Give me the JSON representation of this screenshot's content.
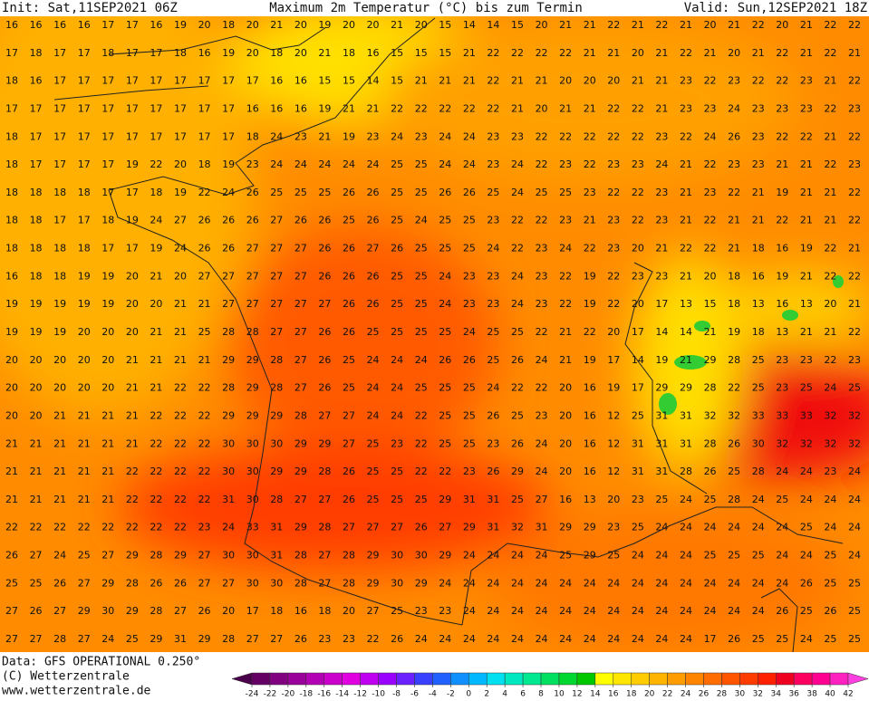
{
  "header": {
    "init": "Init: Sat,11SEP2021 06Z",
    "title": "Maximum 2m Temperatur (°C) bis zum Termin",
    "valid": "Valid: Sun,12SEP2021 18Z"
  },
  "footer": {
    "source": "Data: GFS OPERATIONAL 0.250°",
    "copyright": "(C) Wetterzentrale",
    "website": "www.wetterzentrale.de"
  },
  "grid": {
    "rows": [
      [
        16,
        16,
        16,
        16,
        17,
        17,
        16,
        19,
        20,
        18,
        20,
        21,
        20,
        19,
        20,
        20,
        21,
        20,
        15,
        14,
        14,
        15,
        20,
        21,
        21,
        22,
        21,
        22,
        21,
        20,
        21,
        22,
        20,
        21,
        22,
        22
      ],
      [
        17,
        18,
        17,
        17,
        18,
        17,
        17,
        18,
        16,
        19,
        20,
        18,
        20,
        21,
        18,
        16,
        15,
        15,
        15,
        21,
        22,
        22,
        22,
        22,
        21,
        21,
        20,
        21,
        22,
        21,
        20,
        21,
        22,
        21,
        22,
        21
      ],
      [
        18,
        16,
        17,
        17,
        17,
        17,
        17,
        17,
        17,
        17,
        17,
        16,
        16,
        15,
        15,
        14,
        15,
        21,
        21,
        21,
        22,
        21,
        21,
        20,
        20,
        20,
        21,
        21,
        23,
        22,
        23,
        22,
        22,
        23,
        21,
        22
      ],
      [
        17,
        17,
        17,
        17,
        17,
        17,
        17,
        17,
        17,
        17,
        16,
        16,
        16,
        19,
        21,
        21,
        22,
        22,
        22,
        22,
        22,
        21,
        20,
        21,
        21,
        22,
        22,
        21,
        23,
        23,
        24,
        23,
        23,
        23,
        22,
        23
      ],
      [
        18,
        17,
        17,
        17,
        17,
        17,
        17,
        17,
        17,
        17,
        18,
        24,
        23,
        21,
        19,
        23,
        24,
        23,
        24,
        24,
        23,
        23,
        22,
        22,
        22,
        22,
        22,
        23,
        22,
        24,
        26,
        23,
        22,
        22,
        21,
        22
      ],
      [
        18,
        17,
        17,
        17,
        17,
        19,
        22,
        20,
        18,
        19,
        23,
        24,
        24,
        24,
        24,
        24,
        25,
        25,
        24,
        24,
        23,
        24,
        22,
        23,
        22,
        23,
        23,
        24,
        21,
        22,
        23,
        23,
        21,
        21,
        22,
        23
      ],
      [
        18,
        18,
        18,
        18,
        17,
        17,
        18,
        19,
        22,
        24,
        26,
        25,
        25,
        25,
        26,
        26,
        25,
        25,
        26,
        26,
        25,
        24,
        25,
        25,
        23,
        22,
        22,
        23,
        21,
        23,
        22,
        21,
        19,
        21,
        21,
        22
      ],
      [
        18,
        18,
        17,
        17,
        18,
        19,
        24,
        27,
        26,
        26,
        26,
        27,
        26,
        26,
        25,
        26,
        25,
        24,
        25,
        25,
        23,
        22,
        22,
        23,
        21,
        23,
        22,
        23,
        21,
        22,
        21,
        21,
        22,
        21,
        21,
        22
      ],
      [
        18,
        18,
        18,
        18,
        17,
        17,
        19,
        24,
        26,
        26,
        27,
        27,
        27,
        26,
        26,
        27,
        26,
        25,
        25,
        25,
        24,
        22,
        23,
        24,
        22,
        23,
        20,
        21,
        22,
        22,
        21,
        18,
        16,
        19,
        22,
        21
      ],
      [
        16,
        18,
        18,
        19,
        19,
        20,
        21,
        20,
        27,
        27,
        27,
        27,
        27,
        26,
        26,
        26,
        25,
        25,
        24,
        23,
        23,
        24,
        23,
        22,
        19,
        22,
        23,
        23,
        21,
        20,
        18,
        16,
        19,
        21,
        22,
        22
      ],
      [
        19,
        19,
        19,
        19,
        19,
        20,
        20,
        21,
        21,
        27,
        27,
        27,
        27,
        27,
        26,
        26,
        25,
        25,
        24,
        23,
        23,
        24,
        23,
        22,
        19,
        22,
        20,
        17,
        13,
        15,
        18,
        13,
        16,
        13,
        20,
        21
      ],
      [
        19,
        19,
        19,
        20,
        20,
        20,
        21,
        21,
        25,
        28,
        28,
        27,
        27,
        26,
        26,
        25,
        25,
        25,
        25,
        24,
        25,
        25,
        22,
        21,
        22,
        20,
        17,
        14,
        14,
        21,
        19,
        18,
        13,
        21,
        21,
        22
      ],
      [
        20,
        20,
        20,
        20,
        20,
        21,
        21,
        21,
        21,
        29,
        29,
        28,
        27,
        26,
        25,
        24,
        24,
        24,
        26,
        26,
        25,
        26,
        24,
        21,
        19,
        17,
        14,
        19,
        21,
        29,
        28,
        25,
        23,
        23,
        22,
        23
      ],
      [
        20,
        20,
        20,
        20,
        20,
        21,
        21,
        22,
        22,
        28,
        29,
        28,
        27,
        26,
        25,
        24,
        24,
        25,
        25,
        25,
        24,
        22,
        22,
        20,
        16,
        19,
        17,
        29,
        29,
        28,
        22,
        25,
        23,
        25,
        24,
        25
      ],
      [
        20,
        20,
        21,
        21,
        21,
        21,
        22,
        22,
        22,
        29,
        29,
        29,
        28,
        27,
        27,
        24,
        24,
        22,
        25,
        25,
        26,
        25,
        23,
        20,
        16,
        12,
        25,
        31,
        31,
        32,
        32,
        33,
        33,
        33,
        32,
        32
      ],
      [
        21,
        21,
        21,
        21,
        21,
        21,
        22,
        22,
        22,
        30,
        30,
        30,
        29,
        29,
        27,
        25,
        23,
        22,
        25,
        25,
        23,
        26,
        24,
        20,
        16,
        12,
        31,
        31,
        31,
        28,
        26,
        30,
        32,
        32,
        32,
        32
      ],
      [
        21,
        21,
        21,
        21,
        21,
        22,
        22,
        22,
        22,
        30,
        30,
        29,
        29,
        28,
        26,
        25,
        25,
        22,
        22,
        23,
        26,
        29,
        24,
        20,
        16,
        12,
        31,
        31,
        28,
        26,
        25,
        28,
        24,
        24,
        23,
        24
      ],
      [
        21,
        21,
        21,
        21,
        21,
        22,
        22,
        22,
        22,
        31,
        30,
        28,
        27,
        27,
        26,
        25,
        25,
        25,
        29,
        31,
        31,
        25,
        27,
        16,
        13,
        20,
        23,
        25,
        24,
        25,
        28,
        24,
        25,
        24,
        24,
        24
      ],
      [
        22,
        22,
        22,
        22,
        22,
        22,
        22,
        22,
        23,
        24,
        33,
        31,
        29,
        28,
        27,
        27,
        27,
        26,
        27,
        29,
        31,
        32,
        31,
        29,
        29,
        23,
        25,
        24,
        24,
        24,
        24,
        24,
        24,
        25,
        24,
        24
      ],
      [
        26,
        27,
        24,
        25,
        27,
        29,
        28,
        29,
        27,
        30,
        30,
        31,
        28,
        27,
        28,
        29,
        30,
        30,
        29,
        24,
        24,
        24,
        24,
        25,
        29,
        25,
        24,
        24,
        24,
        25,
        25,
        25,
        24,
        24,
        25,
        24
      ],
      [
        25,
        25,
        26,
        27,
        29,
        28,
        26,
        26,
        27,
        27,
        30,
        30,
        28,
        27,
        28,
        29,
        30,
        29,
        24,
        24,
        24,
        24,
        24,
        24,
        24,
        24,
        24,
        24,
        24,
        24,
        24,
        24,
        24,
        26,
        25,
        25
      ],
      [
        27,
        26,
        27,
        29,
        30,
        29,
        28,
        27,
        26,
        20,
        17,
        18,
        16,
        18,
        20,
        27,
        25,
        23,
        23,
        24,
        24,
        24,
        24,
        24,
        24,
        24,
        24,
        24,
        24,
        24,
        24,
        24,
        26,
        25,
        26,
        25
      ],
      [
        27,
        27,
        28,
        27,
        24,
        25,
        29,
        31,
        29,
        28,
        27,
        27,
        26,
        23,
        23,
        22,
        26,
        24,
        24,
        24,
        24,
        24,
        24,
        24,
        24,
        24,
        24,
        24,
        24,
        17,
        26,
        25,
        25,
        24,
        25,
        25
      ]
    ]
  },
  "colorbar": {
    "ticks": [
      -24,
      -22,
      -20,
      -18,
      -16,
      -14,
      -12,
      -10,
      -8,
      -6,
      -4,
      -2,
      0,
      2,
      4,
      6,
      8,
      10,
      12,
      14,
      16,
      18,
      20,
      22,
      24,
      26,
      28,
      30,
      32,
      34,
      36,
      38,
      40,
      42
    ],
    "colors": [
      "#4a004a",
      "#640064",
      "#800080",
      "#9a009a",
      "#b400b4",
      "#cc00cc",
      "#e000e0",
      "#c000f0",
      "#9a00ff",
      "#6a20ff",
      "#3a40ff",
      "#2060ff",
      "#1090ff",
      "#00b8ff",
      "#00e0f0",
      "#00e8c0",
      "#00e890",
      "#00e060",
      "#00d830",
      "#00c800",
      "#ffff00",
      "#ffe600",
      "#ffcc00",
      "#ffb400",
      "#ff9c00",
      "#ff8400",
      "#ff6c00",
      "#ff5400",
      "#ff3c00",
      "#ff2000",
      "#f00020",
      "#ff0060",
      "#ff0090",
      "#ff20c0",
      "#ff40e0"
    ]
  }
}
